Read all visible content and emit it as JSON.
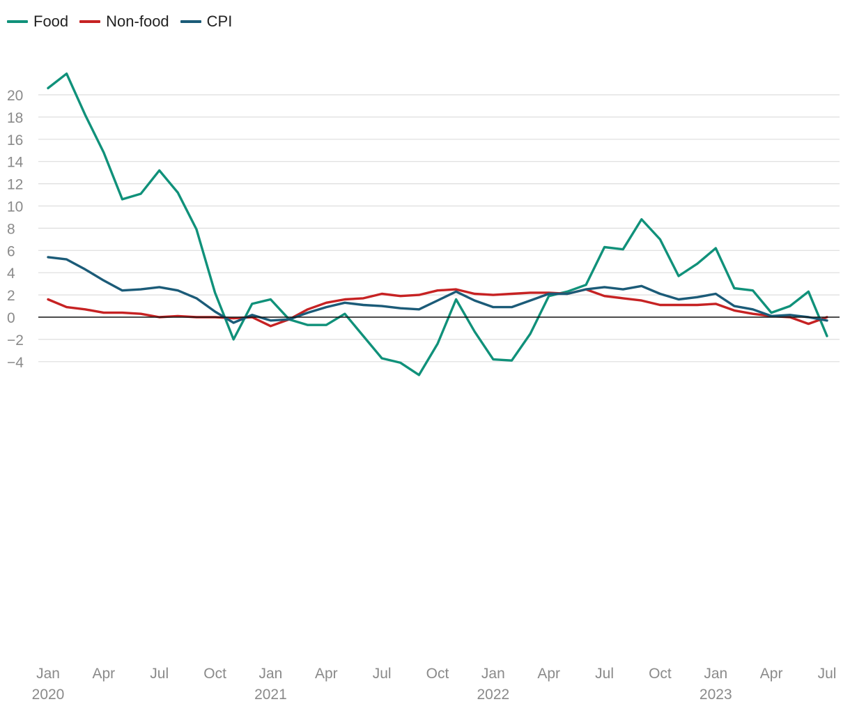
{
  "chart_data": {
    "type": "line",
    "title": "",
    "xlabel": "",
    "ylabel": "",
    "ylim": [
      -5.2,
      22.2
    ],
    "y_ticks": [
      20,
      18,
      16,
      14,
      12,
      10,
      8,
      6,
      4,
      2,
      0,
      -2,
      -4
    ],
    "y_tick_labels": [
      "20",
      "18",
      "16",
      "14",
      "12",
      "10",
      "8",
      "6",
      "4",
      "2",
      "0",
      "−2",
      "−4"
    ],
    "x_tick_labels": [
      {
        "month": "Jan",
        "year": "2020"
      },
      {
        "month": "Apr"
      },
      {
        "month": "Jul"
      },
      {
        "month": "Oct"
      },
      {
        "month": "Jan",
        "year": "2021"
      },
      {
        "month": "Apr"
      },
      {
        "month": "Jul"
      },
      {
        "month": "Oct"
      },
      {
        "month": "Jan",
        "year": "2022"
      },
      {
        "month": "Apr"
      },
      {
        "month": "Jul"
      },
      {
        "month": "Oct"
      },
      {
        "month": "Jan",
        "year": "2023"
      },
      {
        "month": "Apr"
      },
      {
        "month": "Jul"
      }
    ],
    "grid": true,
    "legend": "top-left",
    "x_start": "2020-01",
    "x_end": "2023-07",
    "series": [
      {
        "name": "Food",
        "color": "#10917a",
        "values": [
          20.6,
          21.9,
          18.2,
          14.8,
          10.6,
          11.1,
          13.2,
          11.2,
          7.9,
          2.2,
          -2.0,
          1.2,
          1.6,
          -0.2,
          -0.7,
          -0.7,
          0.3,
          -1.7,
          -3.7,
          -4.1,
          -5.2,
          -2.4,
          1.6,
          -1.3,
          -3.8,
          -3.9,
          -1.5,
          1.9,
          2.3,
          2.9,
          6.3,
          6.1,
          8.8,
          7.0,
          3.7,
          4.8,
          6.2,
          2.6,
          2.4,
          0.4,
          1.0,
          2.3,
          -1.7
        ]
      },
      {
        "name": "Non-food",
        "color": "#c62223",
        "values": [
          1.6,
          0.9,
          0.7,
          0.4,
          0.4,
          0.3,
          0.0,
          0.1,
          0.0,
          0.0,
          -0.1,
          0.0,
          -0.8,
          -0.2,
          0.7,
          1.3,
          1.6,
          1.7,
          2.1,
          1.9,
          2.0,
          2.4,
          2.5,
          2.1,
          2.0,
          2.1,
          2.2,
          2.2,
          2.1,
          2.5,
          1.9,
          1.7,
          1.5,
          1.1,
          1.1,
          1.1,
          1.2,
          0.6,
          0.3,
          0.1,
          0.0,
          -0.6,
          0.0
        ]
      },
      {
        "name": "CPI",
        "color": "#1b5b78",
        "values": [
          5.4,
          5.2,
          4.3,
          3.3,
          2.4,
          2.5,
          2.7,
          2.4,
          1.7,
          0.5,
          -0.5,
          0.2,
          -0.3,
          -0.2,
          0.4,
          0.9,
          1.3,
          1.1,
          1.0,
          0.8,
          0.7,
          1.5,
          2.3,
          1.5,
          0.9,
          0.9,
          1.5,
          2.1,
          2.1,
          2.5,
          2.7,
          2.5,
          2.8,
          2.1,
          1.6,
          1.8,
          2.1,
          1.0,
          0.7,
          0.1,
          0.2,
          0.0,
          -0.3
        ]
      }
    ]
  }
}
